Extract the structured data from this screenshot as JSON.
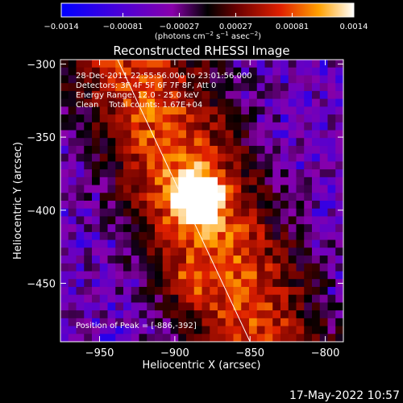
{
  "chart_data": {
    "type": "heatmap",
    "title": "Reconstructed RHESSI Image",
    "xlabel": "Heliocentric X (arcsec)",
    "ylabel": "Heliocentric Y (arcsec)",
    "xlim": [
      -976,
      -788
    ],
    "ylim": [
      -490,
      -297
    ],
    "x_ticks": [
      -950,
      -900,
      -850,
      -800
    ],
    "y_ticks": [
      -300,
      -350,
      -400,
      -450
    ],
    "x_tick_labels": [
      "−950",
      "−900",
      "−850",
      "−800"
    ],
    "y_tick_labels": [
      "−300",
      "−350",
      "−400",
      "−450"
    ],
    "colorbar": {
      "range": [
        -0.0014,
        0.0014
      ],
      "ticks": [
        -0.0014,
        -0.00081,
        -0.00027,
        0.00027,
        0.00081,
        0.0014
      ],
      "tick_labels": [
        "−0.0014",
        "−0.00081",
        "−0.00027",
        "0.00027",
        "0.00081",
        "0.0014"
      ],
      "units_prefix": "(photons cm",
      "units_exp1": "−2",
      "units_mid1": " s",
      "units_exp2": "−1",
      "units_mid2": " asec",
      "units_exp3": "−2",
      "units_suffix": ")"
    },
    "annotations": [
      "28-Dec-2011 22:55:56.000 to 23:01:56.000",
      "Detectors: 3F 4F 5F 6F 7F 8F, Att 0",
      "Energy Range: 12.0 - 25.0 keV",
      "Clean    Total counts: 1.67E+04"
    ],
    "peak_label": "Position of Peak = [-886,-392]",
    "peak": {
      "x": -886,
      "y": -392
    },
    "limb_line": [
      {
        "x": -938,
        "y": -297
      },
      {
        "x": -850,
        "y": -490
      }
    ],
    "grid": false
  },
  "footer": {
    "timestamp": "17-May-2022 10:57"
  }
}
